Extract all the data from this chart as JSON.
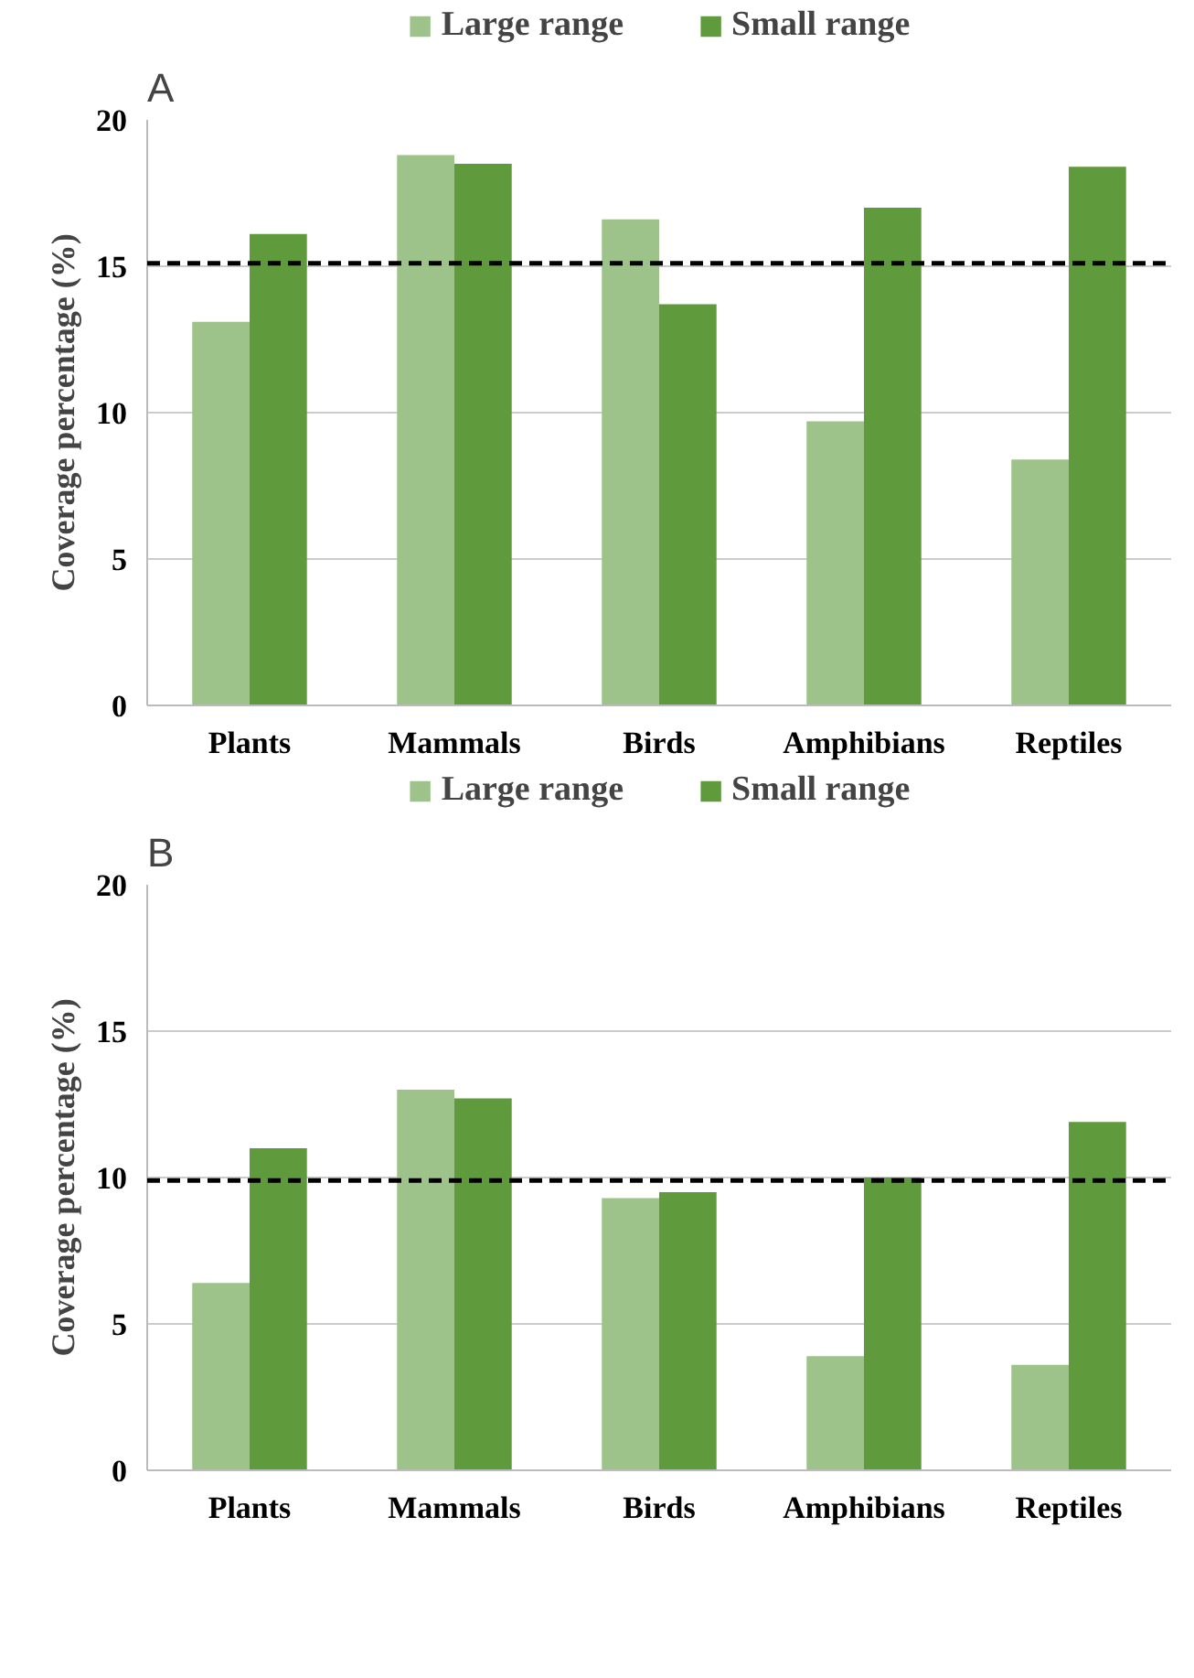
{
  "chart_data": [
    {
      "type": "bar",
      "title": "A",
      "ylabel": "Coverage percentage (%)",
      "categories": [
        "Plants",
        "Mammals",
        "Birds",
        "Amphibians",
        "Reptiles"
      ],
      "series": [
        {
          "name": "Large range",
          "color": "#9dc38a",
          "values": [
            13.1,
            18.8,
            16.6,
            9.7,
            8.4
          ]
        },
        {
          "name": "Small range",
          "color": "#5f9a3c",
          "values": [
            16.1,
            18.5,
            13.7,
            17.0,
            18.4
          ]
        }
      ],
      "ylim": [
        0,
        20
      ],
      "yticks": [
        0,
        5,
        10,
        15,
        20
      ],
      "grid": "y",
      "legend": "top",
      "ref_lines": [
        {
          "axis": "y",
          "value": 15.1,
          "color": "#000000",
          "line_style": "dashed"
        }
      ]
    },
    {
      "type": "bar",
      "title": "B",
      "ylabel": "Coverage percentage (%)",
      "categories": [
        "Plants",
        "Mammals",
        "Birds",
        "Amphibians",
        "Reptiles"
      ],
      "series": [
        {
          "name": "Large range",
          "color": "#9dc38a",
          "values": [
            6.4,
            13.0,
            9.3,
            3.9,
            3.6
          ]
        },
        {
          "name": "Small range",
          "color": "#5f9a3c",
          "values": [
            11.0,
            12.7,
            9.5,
            10.0,
            11.9
          ]
        }
      ],
      "ylim": [
        0,
        20
      ],
      "yticks": [
        0,
        5,
        10,
        15,
        20
      ],
      "grid": "y",
      "legend": "top",
      "ref_lines": [
        {
          "axis": "y",
          "value": 9.9,
          "color": "#000000",
          "line_style": "dashed"
        }
      ]
    }
  ]
}
